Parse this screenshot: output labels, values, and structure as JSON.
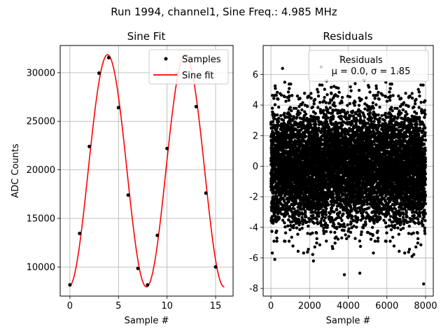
{
  "figure": {
    "suptitle": "Run 1994, channel1, Sine Freq.: 4.985 MHz"
  },
  "chart_data": [
    {
      "type": "line",
      "title": "Sine Fit",
      "xlabel": "Sample #",
      "ylabel": "ADC Counts",
      "xlim": [
        -1.0,
        16.8
      ],
      "ylim": [
        7000,
        32800
      ],
      "xticks": [
        0,
        5,
        10,
        15
      ],
      "yticks": [
        10000,
        15000,
        20000,
        25000,
        30000
      ],
      "grid": true,
      "legend_position": "top-right",
      "samples": {
        "name": "Samples",
        "color": "#000000",
        "x": [
          0,
          1,
          2,
          3,
          4,
          5,
          6,
          7,
          8,
          9,
          10,
          11,
          12,
          13,
          14,
          15
        ],
        "y": [
          8150,
          13450,
          22400,
          29950,
          31550,
          26400,
          17400,
          9850,
          8150,
          13250,
          22200,
          29850,
          31750,
          26500,
          17600,
          10000
        ]
      },
      "fit": {
        "name": "Sine fit",
        "color": "#ff0000",
        "amplitude": 11950,
        "offset": 19900,
        "period": 8.0,
        "phase_shift": 1.88,
        "x_range": [
          0,
          15.9
        ]
      }
    },
    {
      "type": "scatter",
      "title": "Residuals",
      "xlabel": "Sample #",
      "ylabel": "",
      "xlim": [
        -400,
        8400
      ],
      "ylim": [
        -8.5,
        7.9
      ],
      "xticks": [
        0,
        2000,
        4000,
        6000,
        8000
      ],
      "yticks": [
        -8,
        -6,
        -4,
        -2,
        0,
        2,
        4,
        6
      ],
      "grid": true,
      "legend_position": "top-right",
      "legend_title": "Residuals",
      "legend_stats": "μ = 0.0, σ = 1.85",
      "series": {
        "color": "#000000",
        "n_points": 8000,
        "x_range": [
          0,
          8000
        ],
        "mean": 0.0,
        "sigma": 1.85
      },
      "notable_points": [
        {
          "x": 200,
          "y": -6.1
        },
        {
          "x": 2600,
          "y": 6.5
        },
        {
          "x": 3600,
          "y": 7.2
        },
        {
          "x": 3800,
          "y": -7.1
        },
        {
          "x": 4600,
          "y": -7.0
        },
        {
          "x": 7300,
          "y": -5.9
        },
        {
          "x": 7900,
          "y": -7.7
        },
        {
          "x": 2200,
          "y": -6.2
        },
        {
          "x": 6600,
          "y": 6.2
        },
        {
          "x": 600,
          "y": 6.4
        }
      ]
    }
  ]
}
